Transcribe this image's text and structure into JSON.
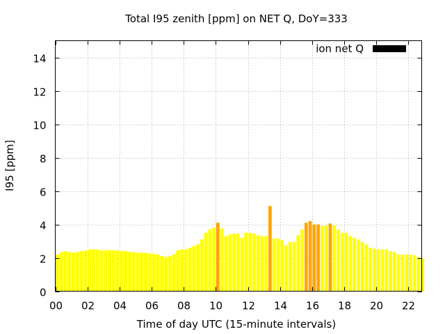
{
  "chart_data": {
    "type": "bar",
    "title": "Total I95 zenith [ppm] on NET Q, DoY=333",
    "xlabel": "Time of day UTC (15-minute intervals)",
    "ylabel": "I95 [ppm]",
    "xlim": [
      0,
      22.75
    ],
    "ylim": [
      0,
      15
    ],
    "xticks": [
      "00",
      "02",
      "04",
      "06",
      "08",
      "10",
      "12",
      "14",
      "16",
      "18",
      "20",
      "22"
    ],
    "yticks": [
      "0",
      "2",
      "4",
      "6",
      "8",
      "10",
      "12",
      "14"
    ],
    "grid": true,
    "legend": {
      "position": "top-right",
      "label": "ion net Q",
      "color": "#000000"
    },
    "bar_interval_hours": 0.25,
    "color_normal": "#ffff00",
    "color_elevated": "#ffa500",
    "elevated_threshold": 4,
    "series": [
      {
        "x": [
          0.0,
          0.25,
          0.5,
          0.75,
          1.0,
          1.25,
          1.5,
          1.75,
          2.0,
          2.25,
          2.5,
          2.75,
          3.0,
          3.25,
          3.5,
          3.75,
          4.0,
          4.25,
          4.5,
          4.75,
          5.0,
          5.25,
          5.5,
          5.75,
          6.0,
          6.25,
          6.5,
          6.75,
          7.0,
          7.25,
          7.5,
          7.75,
          8.0,
          8.25,
          8.5,
          8.75,
          9.0,
          9.25,
          9.5,
          9.75,
          10.0,
          10.25,
          10.5,
          10.75,
          11.0,
          11.25,
          11.5,
          11.75,
          12.0,
          12.25,
          12.5,
          12.75,
          13.0,
          13.25,
          13.5,
          13.75,
          14.0,
          14.25,
          14.5,
          14.75,
          15.0,
          15.25,
          15.5,
          15.75,
          16.0,
          16.25,
          16.5,
          16.75,
          17.0,
          17.25,
          17.5,
          17.75,
          18.0,
          18.25,
          18.5,
          18.75,
          19.0,
          19.25,
          19.5,
          19.75,
          20.0,
          20.25,
          20.5,
          20.75,
          21.0,
          21.25,
          21.5,
          21.75,
          22.0,
          22.25,
          22.5,
          22.75
        ],
        "values": [
          2.2,
          2.35,
          2.4,
          2.35,
          2.3,
          2.35,
          2.4,
          2.45,
          2.5,
          2.5,
          2.5,
          2.45,
          2.45,
          2.45,
          2.45,
          2.45,
          2.4,
          2.4,
          2.35,
          2.35,
          2.3,
          2.3,
          2.3,
          2.25,
          2.25,
          2.2,
          2.1,
          2.05,
          2.1,
          2.2,
          2.45,
          2.5,
          2.5,
          2.6,
          2.7,
          2.8,
          3.1,
          3.5,
          3.7,
          3.8,
          4.1,
          3.75,
          3.3,
          3.4,
          3.45,
          3.45,
          3.2,
          3.5,
          3.5,
          3.45,
          3.35,
          3.3,
          3.3,
          5.1,
          3.15,
          3.15,
          3.05,
          2.75,
          2.95,
          2.95,
          3.35,
          3.7,
          4.1,
          4.2,
          4.0,
          4.0,
          3.9,
          3.95,
          4.05,
          3.95,
          3.7,
          3.5,
          3.5,
          3.3,
          3.2,
          3.1,
          2.95,
          2.8,
          2.6,
          2.55,
          2.5,
          2.5,
          2.5,
          2.4,
          2.35,
          2.2,
          2.2,
          2.2,
          2.2,
          2.15,
          2.05,
          1.95
        ]
      }
    ]
  }
}
